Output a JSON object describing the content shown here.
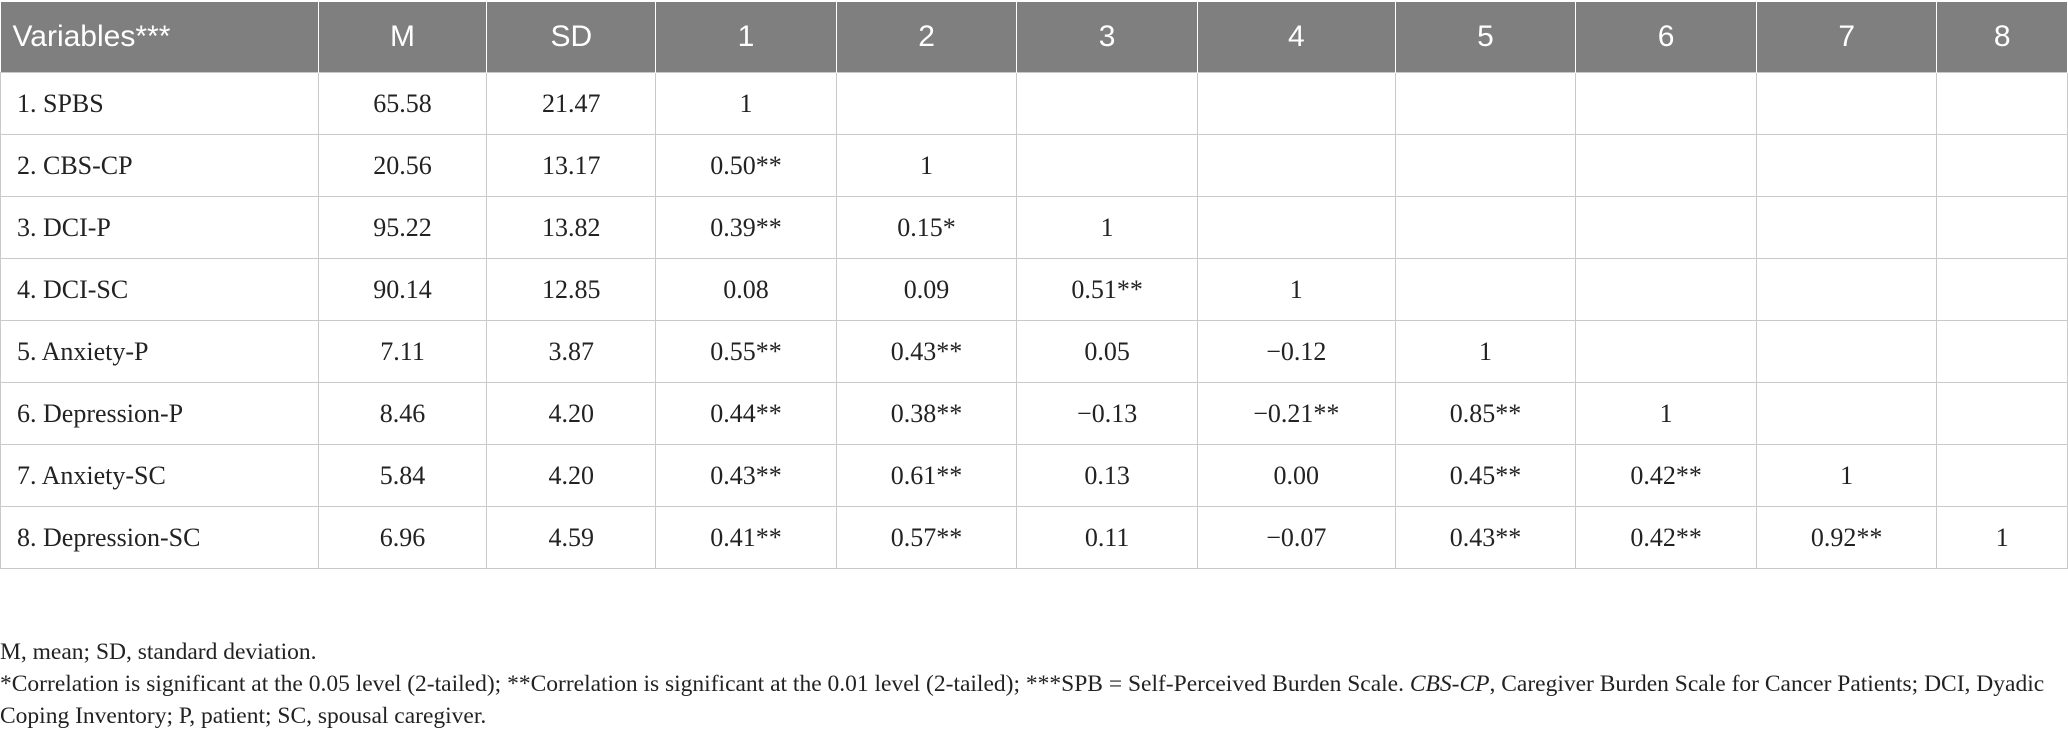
{
  "table": {
    "columns": [
      "Variables***",
      "M",
      "SD",
      "1",
      "2",
      "3",
      "4",
      "5",
      "6",
      "7",
      "8"
    ],
    "rows": [
      {
        "variable": "1.  SPBS",
        "m": "65.58",
        "sd": "21.47",
        "cells": [
          "1",
          "",
          "",
          "",
          "",
          "",
          "",
          ""
        ]
      },
      {
        "variable": "2.  CBS-CP",
        "m": "20.56",
        "sd": "13.17",
        "cells": [
          "0.50**",
          "1",
          "",
          "",
          "",
          "",
          "",
          ""
        ]
      },
      {
        "variable": "3.  DCI-P",
        "m": "95.22",
        "sd": "13.82",
        "cells": [
          "0.39**",
          "0.15*",
          "1",
          "",
          "",
          "",
          "",
          ""
        ]
      },
      {
        "variable": "4.  DCI-SC",
        "m": "90.14",
        "sd": "12.85",
        "cells": [
          "0.08",
          "0.09",
          "0.51**",
          "1",
          "",
          "",
          "",
          ""
        ]
      },
      {
        "variable": "5.  Anxiety-P",
        "m": "7.11",
        "sd": "3.87",
        "cells": [
          "0.55**",
          "0.43**",
          "0.05",
          "−0.12",
          "1",
          "",
          "",
          ""
        ]
      },
      {
        "variable": "6.  Depression-P",
        "m": "8.46",
        "sd": "4.20",
        "cells": [
          "0.44**",
          "0.38**",
          "−0.13",
          "−0.21**",
          "0.85**",
          "1",
          "",
          ""
        ]
      },
      {
        "variable": "7.  Anxiety-SC",
        "m": "5.84",
        "sd": "4.20",
        "cells": [
          "0.43**",
          "0.61**",
          "0.13",
          "0.00",
          "0.45**",
          "0.42**",
          "1",
          ""
        ]
      },
      {
        "variable": "8.  Depression-SC",
        "m": "6.96",
        "sd": "4.59",
        "cells": [
          "0.41**",
          "0.57**",
          "0.11",
          "−0.07",
          "0.43**",
          "0.42**",
          "0.92**",
          "1"
        ]
      }
    ]
  },
  "notes": {
    "line1": "M, mean; SD, standard deviation.",
    "line2_before_italic": "*Correlation is significant at the 0.05 level (2-tailed); **Correlation is significant at the 0.01 level (2-tailed); ***SPB = Self-Perceived Burden Scale. ",
    "line2_italic": "CBS-CP",
    "line2_after_italic": ", Caregiver Burden Scale for Cancer Patients; DCI, Dyadic Coping Inventory; P, patient; SC, spousal caregiver."
  },
  "colors": {
    "header_bg": "#7f7f7f",
    "header_text": "#ffffff",
    "grid": "#c9c9c9"
  }
}
